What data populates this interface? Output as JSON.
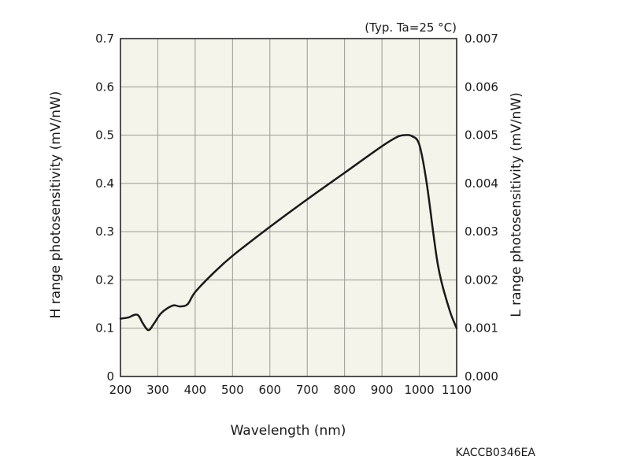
{
  "chart_data": {
    "type": "line",
    "note": "(Typ. Ta=25 °C)",
    "xlabel": "Wavelength (nm)",
    "ylabel_left": "H range photosensitivity (mV/nW)",
    "ylabel_right": "L range photosensitivity (mV/nW)",
    "xlim": [
      200,
      1100
    ],
    "ylim": [
      0,
      0.7
    ],
    "ylim_right": [
      0,
      0.007
    ],
    "x_ticks": [
      "200",
      "300",
      "400",
      "500",
      "600",
      "700",
      "800",
      "900",
      "1000",
      "1100"
    ],
    "y_ticks_left": [
      "0",
      "0.1",
      "0.2",
      "0.3",
      "0.4",
      "0.5",
      "0.6",
      "0.7"
    ],
    "y_ticks_right": [
      "0.000",
      "0.001",
      "0.002",
      "0.003",
      "0.004",
      "0.005",
      "0.006",
      "0.007"
    ],
    "grid": true,
    "series": [
      {
        "x": [
          200,
          220,
          245,
          260,
          275,
          290,
          310,
          340,
          360,
          380,
          400,
          450,
          500,
          600,
          700,
          800,
          900,
          940,
          960,
          980,
          1000,
          1020,
          1050,
          1080,
          1100
        ],
        "y": [
          0.12,
          0.122,
          0.128,
          0.11,
          0.096,
          0.11,
          0.132,
          0.147,
          0.145,
          0.15,
          0.175,
          0.215,
          0.25,
          0.31,
          0.367,
          0.422,
          0.477,
          0.496,
          0.5,
          0.498,
          0.48,
          0.4,
          0.23,
          0.14,
          0.1
        ]
      }
    ]
  },
  "footer": {
    "code": "KACCB0346EA"
  },
  "colors": {
    "plot_bg": "#f5f4ea",
    "grid": "#9a9a94",
    "axis": "#1a1a1a",
    "line": "#1a1a1a"
  }
}
